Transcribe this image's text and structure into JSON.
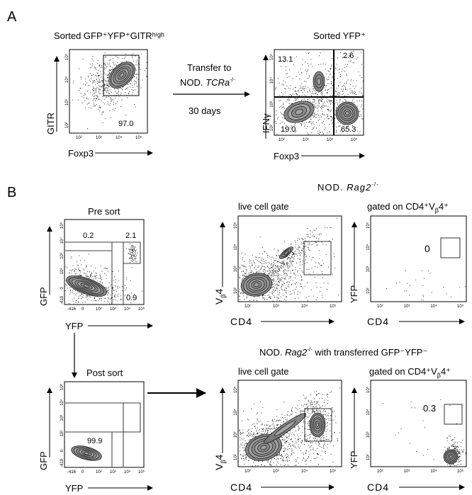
{
  "panel_A": {
    "letter": "A",
    "left_title": "Sorted GFP⁺YFP⁺GITRʰⁱᵍʰ",
    "left_ylabel": "GITR",
    "left_xlabel": "Foxp3",
    "left_gate_value": "97.0",
    "transfer_line1": "Transfer to",
    "transfer_line2_prefix": "NOD. ",
    "transfer_line2_italic": "TCRa",
    "transfer_line2_sup": "-/-",
    "transfer_days": "30 days",
    "right_title": "Sorted YFP⁺",
    "right_ylabel": "IFNγ",
    "right_xlabel": "Foxp3",
    "quadrants": {
      "upper_left": "13.1",
      "upper_right": "2.6",
      "lower_left": "19.0",
      "lower_right": "65.3"
    }
  },
  "panel_B": {
    "letter": "B",
    "header_top_prefix": "NOD. ",
    "header_top_italic": "Rag2",
    "header_top_sup": "-/-",
    "header_bottom_prefix": "NOD. ",
    "header_bottom_italic": "Rag2",
    "header_bottom_sup": "-/-",
    "header_bottom_suffix": " with transferred GFP⁻YFP⁻",
    "pre_sort": {
      "title": "Pre sort",
      "ylabel": "GFP",
      "xlabel": "YFP",
      "gates": {
        "upper_left": "0.2",
        "upper_right": "2.1",
        "lower_right": "0.9"
      }
    },
    "post_sort": {
      "title": "Post sort",
      "ylabel": "GFP",
      "xlabel": "YFP",
      "gate_value": "99.9"
    },
    "top_live": {
      "title": "live cell gate",
      "ylabel": "V",
      "ylabel_sub": "β",
      "ylabel_suffix": "4",
      "xlabel": "CD4"
    },
    "top_gated": {
      "title_prefix": "gated on CD4⁺V",
      "title_sub": "β",
      "title_suffix": "4⁺",
      "ylabel": "YFP",
      "xlabel": "CD4",
      "gate_value": "0"
    },
    "bottom_live": {
      "title": "live cell gate",
      "ylabel": "V",
      "ylabel_sub": "β",
      "ylabel_suffix": "4",
      "xlabel": "CD4"
    },
    "bottom_gated": {
      "title_prefix": "gated on CD4⁺V",
      "title_sub": "β",
      "title_suffix": "4⁺",
      "ylabel": "YFP",
      "xlabel": "CD4",
      "gate_value": "0.3"
    }
  },
  "axis_ticks": {
    "log": [
      "10²",
      "10³",
      "10⁴",
      "10⁵"
    ],
    "zero": "0",
    "min_x": "-416",
    "min_y": "-419"
  },
  "colors": {
    "contour_fill": "#7a7a7a",
    "contour_line": "#111111",
    "dots": "#000000"
  }
}
